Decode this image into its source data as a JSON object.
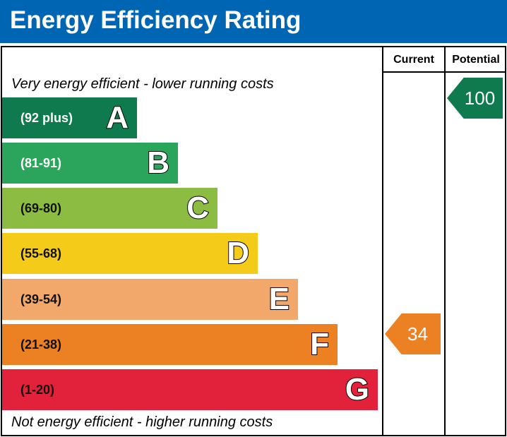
{
  "title": "Energy Efficiency Rating",
  "columns": {
    "current": "Current",
    "potential": "Potential"
  },
  "top_note": "Very energy efficient - lower running costs",
  "bottom_note": "Not energy efficient - higher running costs",
  "bands": [
    {
      "letter": "A",
      "range": "(92 plus)",
      "color": "#0f7a4e"
    },
    {
      "letter": "B",
      "range": "(81-91)",
      "color": "#2ba55c"
    },
    {
      "letter": "C",
      "range": "(69-80)",
      "color": "#8cbc42"
    },
    {
      "letter": "D",
      "range": "(55-68)",
      "color": "#f5cb1a"
    },
    {
      "letter": "E",
      "range": "(39-54)",
      "color": "#f2a86a"
    },
    {
      "letter": "F",
      "range": "(21-38)",
      "color": "#ec8124"
    },
    {
      "letter": "G",
      "range": "(1-20)",
      "color": "#e2213b"
    }
  ],
  "current_rating": {
    "value": "34",
    "band": "F",
    "color": "#ec8124"
  },
  "potential_rating": {
    "value": "100",
    "band": "A",
    "color": "#0f7a4e"
  }
}
